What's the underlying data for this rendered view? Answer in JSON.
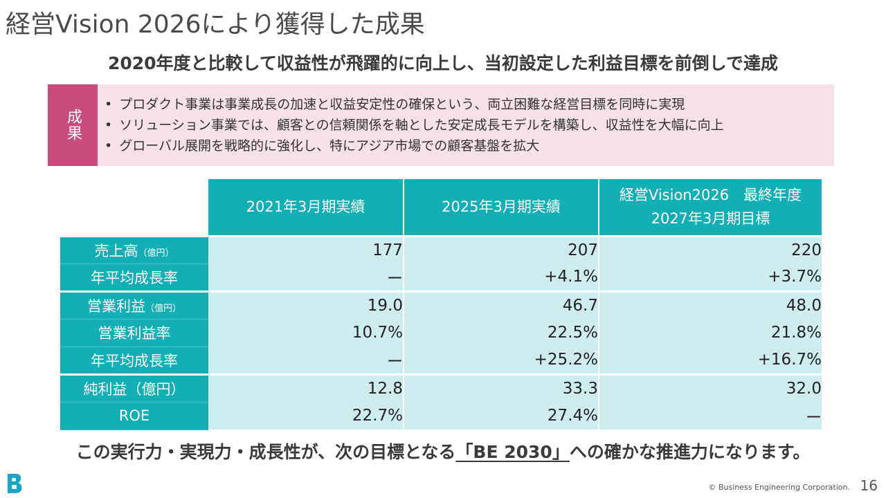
{
  "title": "経営Vision 2026により獲得した成果",
  "subtitle": "2020年度と比較して収益性が飛躍的に向上し、当初設定した利益目標を前倒しで達成",
  "results": {
    "label": "成果",
    "bullets": [
      "プロダクト事業は事業成長の加速と収益安定性の確保という、両立困難な経営目標を同時に実現",
      "ソリューション事業では、顧客との信頼関係を軸とした安定成長モデルを構築し、収益性を大幅に向上",
      "グローバル展開を戦略的に強化し、特にアジア市場での顧客基盤を拡大"
    ],
    "bullet_mark": "•"
  },
  "table": {
    "headers": {
      "col1": "2021年3月期実績",
      "col2": "2025年3月期実績",
      "col3_line1": "経営Vision2026　最終年度",
      "col3_line2": "2027年3月期目標"
    },
    "rows": [
      {
        "label": "売上高",
        "unit": "（億円）",
        "v1": "177",
        "v2": "207",
        "v3": "220"
      },
      {
        "label": "年平均成長率",
        "unit": "",
        "v1": "ー",
        "v2": "+4.1%",
        "v3": "+3.7%"
      },
      {
        "label": "営業利益",
        "unit": "（億円）",
        "v1": "19.0",
        "v2": "46.7",
        "v3": "48.0"
      },
      {
        "label": "営業利益率",
        "unit": "",
        "v1": "10.7%",
        "v2": "22.5%",
        "v3": "21.8%"
      },
      {
        "label": "年平均成長率",
        "unit": "",
        "v1": "ー",
        "v2": "+25.2%",
        "v3": "+16.7%"
      },
      {
        "label": "純利益（億円）",
        "unit": "",
        "v1": "12.8",
        "v2": "33.3",
        "v3": "32.0"
      },
      {
        "label": "ROE",
        "unit": "",
        "v1": "22.7%",
        "v2": "27.4%",
        "v3": "ー"
      }
    ]
  },
  "bottom": {
    "before": "この実行力・実現力・成長性が、次の目標となる",
    "highlight": "「BE 2030」",
    "after": "への確かな推進力になります。"
  },
  "footer": {
    "copyright": "© Business Engineering Corporation.",
    "page": "16",
    "logo_icon": "b-logo-icon"
  },
  "colors": {
    "accent_teal": "#14aeb5",
    "cell_bg": "#ccecee",
    "result_label": "#c94d7c",
    "result_bg": "#f5e1e8",
    "logo": "#1aa6c2"
  }
}
